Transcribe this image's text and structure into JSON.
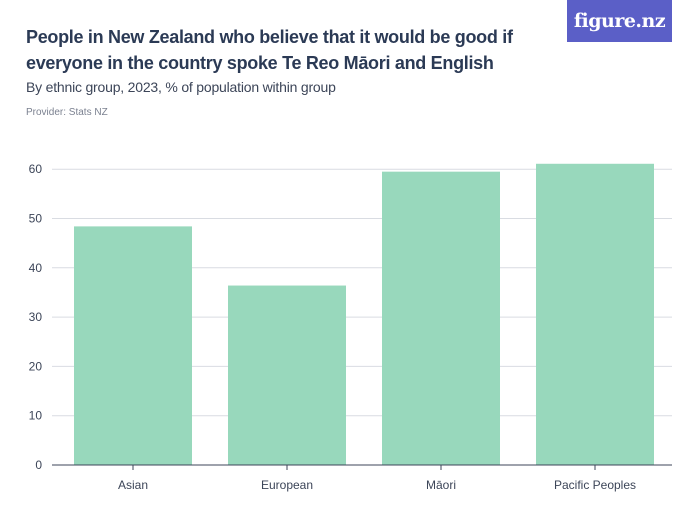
{
  "header": {
    "title": "People in New Zealand who believe that it would be good if everyone in the country spoke Te Reo Māori and English",
    "subtitle": "By ethnic group, 2023, % of population within group",
    "provider": "Provider: Stats NZ",
    "logo_text": "figure.nz"
  },
  "colors": {
    "bar": "#98d8bc",
    "title": "#2b3a55",
    "logo_bg": "#5b5fc7",
    "grid": "#d9dce2",
    "axis": "#3c4558"
  },
  "chart_data": {
    "type": "bar",
    "title": "",
    "xlabel": "",
    "ylabel": "",
    "categories": [
      "Asian",
      "European",
      "Māori",
      "Pacific Peoples"
    ],
    "values": [
      48.4,
      36.4,
      59.5,
      61.1
    ],
    "ylim": [
      0,
      60
    ],
    "yticks": [
      0,
      10,
      20,
      30,
      40,
      50,
      60
    ],
    "grid": true
  }
}
